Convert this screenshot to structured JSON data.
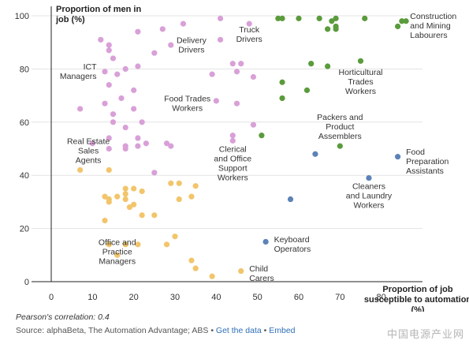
{
  "chart_data": {
    "type": "scatter",
    "ylabel": "Proportion of men in job (%)",
    "xlabel": "Proportion of job susceptible to automation (%)",
    "xlim": [
      0,
      90
    ],
    "ylim": [
      0,
      100
    ],
    "xticks": [
      0,
      10,
      20,
      30,
      40,
      50,
      60,
      70,
      80
    ],
    "yticks": [
      0,
      20,
      40,
      60,
      80,
      100
    ],
    "colors": {
      "pink": "#d9a0d8",
      "orange": "#f2c56b",
      "green": "#5a9b3c",
      "blue": "#5c82b8"
    },
    "points": [
      {
        "x": 12,
        "y": 91,
        "c": "pink"
      },
      {
        "x": 14,
        "y": 89,
        "c": "pink"
      },
      {
        "x": 14,
        "y": 87,
        "c": "pink"
      },
      {
        "x": 21,
        "y": 94,
        "c": "pink"
      },
      {
        "x": 27,
        "y": 95,
        "c": "pink"
      },
      {
        "x": 32,
        "y": 97,
        "c": "pink"
      },
      {
        "x": 41,
        "y": 99,
        "c": "pink"
      },
      {
        "x": 48,
        "y": 97,
        "c": "pink"
      },
      {
        "x": 41,
        "y": 91,
        "c": "pink"
      },
      {
        "x": 29,
        "y": 89,
        "c": "pink"
      },
      {
        "x": 25,
        "y": 86,
        "c": "pink"
      },
      {
        "x": 15,
        "y": 84,
        "c": "pink"
      },
      {
        "x": 13,
        "y": 79,
        "c": "pink"
      },
      {
        "x": 18,
        "y": 80,
        "c": "pink"
      },
      {
        "x": 21,
        "y": 81,
        "c": "pink"
      },
      {
        "x": 16,
        "y": 78,
        "c": "pink"
      },
      {
        "x": 39,
        "y": 78,
        "c": "pink"
      },
      {
        "x": 44,
        "y": 82,
        "c": "pink"
      },
      {
        "x": 46,
        "y": 82,
        "c": "pink"
      },
      {
        "x": 45,
        "y": 79,
        "c": "pink"
      },
      {
        "x": 49,
        "y": 77,
        "c": "pink"
      },
      {
        "x": 14,
        "y": 74,
        "c": "pink"
      },
      {
        "x": 20,
        "y": 72,
        "c": "pink"
      },
      {
        "x": 17,
        "y": 69,
        "c": "pink"
      },
      {
        "x": 13,
        "y": 67,
        "c": "pink"
      },
      {
        "x": 7,
        "y": 65,
        "c": "pink"
      },
      {
        "x": 15,
        "y": 63,
        "c": "pink"
      },
      {
        "x": 20,
        "y": 65,
        "c": "pink"
      },
      {
        "x": 15,
        "y": 60,
        "c": "pink"
      },
      {
        "x": 18,
        "y": 58,
        "c": "pink"
      },
      {
        "x": 22,
        "y": 60,
        "c": "pink"
      },
      {
        "x": 40,
        "y": 68,
        "c": "pink"
      },
      {
        "x": 45,
        "y": 67,
        "c": "pink"
      },
      {
        "x": 49,
        "y": 59,
        "c": "pink"
      },
      {
        "x": 44,
        "y": 55,
        "c": "pink"
      },
      {
        "x": 44,
        "y": 53,
        "c": "pink"
      },
      {
        "x": 14,
        "y": 54,
        "c": "pink"
      },
      {
        "x": 21,
        "y": 54,
        "c": "pink"
      },
      {
        "x": 18,
        "y": 51,
        "c": "pink"
      },
      {
        "x": 18,
        "y": 50,
        "c": "pink"
      },
      {
        "x": 21,
        "y": 51,
        "c": "pink"
      },
      {
        "x": 23,
        "y": 52,
        "c": "pink"
      },
      {
        "x": 28,
        "y": 52,
        "c": "pink"
      },
      {
        "x": 29,
        "y": 51,
        "c": "pink"
      },
      {
        "x": 10,
        "y": 52,
        "c": "pink"
      },
      {
        "x": 14,
        "y": 50,
        "c": "pink"
      },
      {
        "x": 25,
        "y": 41,
        "c": "pink"
      },
      {
        "x": 7,
        "y": 42,
        "c": "orange"
      },
      {
        "x": 14,
        "y": 42,
        "c": "orange"
      },
      {
        "x": 18,
        "y": 35,
        "c": "orange"
      },
      {
        "x": 20,
        "y": 35,
        "c": "orange"
      },
      {
        "x": 18,
        "y": 33,
        "c": "orange"
      },
      {
        "x": 22,
        "y": 34,
        "c": "orange"
      },
      {
        "x": 29,
        "y": 37,
        "c": "orange"
      },
      {
        "x": 31,
        "y": 37,
        "c": "orange"
      },
      {
        "x": 35,
        "y": 36,
        "c": "orange"
      },
      {
        "x": 34,
        "y": 32,
        "c": "orange"
      },
      {
        "x": 31,
        "y": 31,
        "c": "orange"
      },
      {
        "x": 13,
        "y": 32,
        "c": "orange"
      },
      {
        "x": 14,
        "y": 31,
        "c": "orange"
      },
      {
        "x": 14,
        "y": 30,
        "c": "orange"
      },
      {
        "x": 16,
        "y": 32,
        "c": "orange"
      },
      {
        "x": 18,
        "y": 31,
        "c": "orange"
      },
      {
        "x": 20,
        "y": 29,
        "c": "orange"
      },
      {
        "x": 19,
        "y": 28,
        "c": "orange"
      },
      {
        "x": 22,
        "y": 25,
        "c": "orange"
      },
      {
        "x": 25,
        "y": 25,
        "c": "orange"
      },
      {
        "x": 13,
        "y": 23,
        "c": "orange"
      },
      {
        "x": 14,
        "y": 14,
        "c": "orange"
      },
      {
        "x": 18,
        "y": 14,
        "c": "orange"
      },
      {
        "x": 21,
        "y": 14,
        "c": "orange"
      },
      {
        "x": 28,
        "y": 14,
        "c": "orange"
      },
      {
        "x": 30,
        "y": 17,
        "c": "orange"
      },
      {
        "x": 16,
        "y": 10,
        "c": "orange"
      },
      {
        "x": 34,
        "y": 8,
        "c": "orange"
      },
      {
        "x": 35,
        "y": 5,
        "c": "orange"
      },
      {
        "x": 39,
        "y": 2,
        "c": "orange"
      },
      {
        "x": 46,
        "y": 4,
        "c": "orange"
      },
      {
        "x": 55,
        "y": 99,
        "c": "green"
      },
      {
        "x": 56,
        "y": 99,
        "c": "green"
      },
      {
        "x": 60,
        "y": 99,
        "c": "green"
      },
      {
        "x": 65,
        "y": 99,
        "c": "green"
      },
      {
        "x": 68,
        "y": 98,
        "c": "green"
      },
      {
        "x": 69,
        "y": 99,
        "c": "green"
      },
      {
        "x": 69,
        "y": 96,
        "c": "green"
      },
      {
        "x": 69,
        "y": 95,
        "c": "green"
      },
      {
        "x": 67,
        "y": 95,
        "c": "green"
      },
      {
        "x": 76,
        "y": 99,
        "c": "green"
      },
      {
        "x": 85,
        "y": 98,
        "c": "green"
      },
      {
        "x": 86,
        "y": 98,
        "c": "green"
      },
      {
        "x": 84,
        "y": 96,
        "c": "green"
      },
      {
        "x": 63,
        "y": 82,
        "c": "green"
      },
      {
        "x": 67,
        "y": 81,
        "c": "green"
      },
      {
        "x": 75,
        "y": 83,
        "c": "green"
      },
      {
        "x": 56,
        "y": 75,
        "c": "green"
      },
      {
        "x": 62,
        "y": 72,
        "c": "green"
      },
      {
        "x": 56,
        "y": 69,
        "c": "green"
      },
      {
        "x": 51,
        "y": 55,
        "c": "green"
      },
      {
        "x": 70,
        "y": 51,
        "c": "green"
      },
      {
        "x": 64,
        "y": 48,
        "c": "blue"
      },
      {
        "x": 84,
        "y": 47,
        "c": "blue"
      },
      {
        "x": 77,
        "y": 39,
        "c": "blue"
      },
      {
        "x": 58,
        "y": 31,
        "c": "blue"
      },
      {
        "x": 52,
        "y": 15,
        "c": "blue"
      }
    ],
    "annotations": [
      {
        "id": "construction",
        "lines": [
          "Construction",
          "and Mining",
          "Labourers"
        ],
        "x": 87,
        "y": 100,
        "anchor": "start"
      },
      {
        "id": "truck",
        "lines": [
          "Truck",
          "Drivers"
        ],
        "x": 48,
        "y": 95,
        "anchor": "middle"
      },
      {
        "id": "delivery",
        "lines": [
          "Delivery",
          "Drivers"
        ],
        "x": 34,
        "y": 91,
        "anchor": "middle"
      },
      {
        "id": "ict",
        "lines": [
          "ICT",
          "Managers"
        ],
        "x": 11,
        "y": 81,
        "anchor": "end"
      },
      {
        "id": "horticultural",
        "lines": [
          "Horticultural",
          "Trades",
          "Workers"
        ],
        "x": 75,
        "y": 79,
        "anchor": "middle"
      },
      {
        "id": "foodtrades",
        "lines": [
          "Food Trades",
          "Workers"
        ],
        "x": 33,
        "y": 69,
        "anchor": "middle"
      },
      {
        "id": "packers",
        "lines": [
          "Packers and",
          "Product",
          "Assemblers"
        ],
        "x": 70,
        "y": 62,
        "anchor": "middle"
      },
      {
        "id": "realestate",
        "lines": [
          "Real Estate",
          "Sales",
          "Agents"
        ],
        "x": 9,
        "y": 53,
        "anchor": "middle"
      },
      {
        "id": "clerical",
        "lines": [
          "Clerical",
          "and Office",
          "Support",
          "Workers"
        ],
        "x": 44,
        "y": 50,
        "anchor": "middle"
      },
      {
        "id": "foodprep",
        "lines": [
          "Food",
          "Preparation",
          "Assistants"
        ],
        "x": 86,
        "y": 49,
        "anchor": "start"
      },
      {
        "id": "cleaners",
        "lines": [
          "Cleaners",
          "and Laundry",
          "Workers"
        ],
        "x": 77,
        "y": 36,
        "anchor": "middle"
      },
      {
        "id": "office",
        "lines": [
          "Office and",
          "Practice",
          "Managers"
        ],
        "x": 16,
        "y": 15,
        "anchor": "middle"
      },
      {
        "id": "keyboard",
        "lines": [
          "Keyboard",
          "Operators"
        ],
        "x": 54,
        "y": 16,
        "anchor": "start"
      },
      {
        "id": "child",
        "lines": [
          "Child",
          "Carers"
        ],
        "x": 48,
        "y": 5,
        "anchor": "start"
      }
    ]
  },
  "footer": {
    "correlation": "Pearson's correlation: 0.4",
    "source_prefix": "Source: alphaBeta, The Automation Advantage; ABS •",
    "get_data": "Get the data",
    "separator": "•",
    "embed": "Embed"
  },
  "watermark": "中国电源产业网"
}
